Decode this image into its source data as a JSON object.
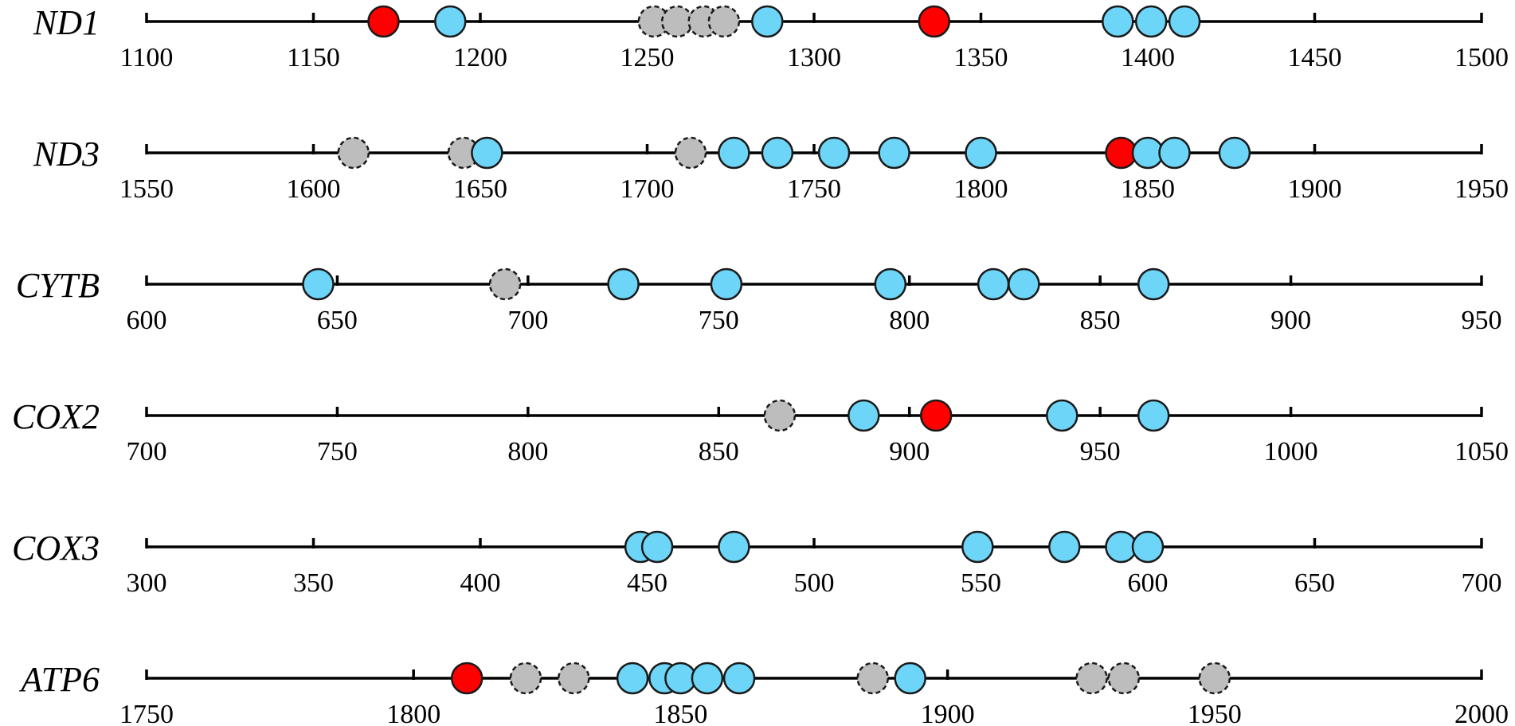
{
  "chart_data": {
    "type": "scatter",
    "title": "",
    "colors": {
      "red": "#ff0000",
      "blue": "#6dd5f7",
      "gray": "#bdbdbd",
      "outline": "#1a1a1a"
    },
    "tracks": [
      {
        "gene": "ND1",
        "xlim": [
          1100,
          1500
        ],
        "ticks": [
          1100,
          1150,
          1200,
          1250,
          1300,
          1350,
          1400,
          1450,
          1500
        ],
        "points": [
          {
            "x": 1171,
            "type": "red"
          },
          {
            "x": 1191,
            "type": "blue"
          },
          {
            "x": 1252,
            "type": "gray"
          },
          {
            "x": 1259,
            "type": "gray"
          },
          {
            "x": 1267,
            "type": "gray"
          },
          {
            "x": 1273,
            "type": "gray"
          },
          {
            "x": 1286,
            "type": "blue"
          },
          {
            "x": 1336,
            "type": "red"
          },
          {
            "x": 1391,
            "type": "blue"
          },
          {
            "x": 1401,
            "type": "blue"
          },
          {
            "x": 1411,
            "type": "blue"
          }
        ]
      },
      {
        "gene": "ND3",
        "xlim": [
          1550,
          1950
        ],
        "ticks": [
          1550,
          1600,
          1650,
          1700,
          1750,
          1800,
          1850,
          1900,
          1950
        ],
        "points": [
          {
            "x": 1612,
            "type": "gray"
          },
          {
            "x": 1645,
            "type": "gray"
          },
          {
            "x": 1652,
            "type": "blue"
          },
          {
            "x": 1713,
            "type": "gray"
          },
          {
            "x": 1726,
            "type": "blue"
          },
          {
            "x": 1739,
            "type": "blue"
          },
          {
            "x": 1756,
            "type": "blue"
          },
          {
            "x": 1774,
            "type": "blue"
          },
          {
            "x": 1800,
            "type": "blue"
          },
          {
            "x": 1842,
            "type": "red"
          },
          {
            "x": 1850,
            "type": "blue"
          },
          {
            "x": 1858,
            "type": "blue"
          },
          {
            "x": 1876,
            "type": "blue"
          }
        ]
      },
      {
        "gene": "CYTB",
        "xlim": [
          600,
          950
        ],
        "ticks": [
          600,
          650,
          700,
          750,
          800,
          850,
          900,
          950
        ],
        "points": [
          {
            "x": 645,
            "type": "blue"
          },
          {
            "x": 694,
            "type": "gray"
          },
          {
            "x": 725,
            "type": "blue"
          },
          {
            "x": 752,
            "type": "blue"
          },
          {
            "x": 795,
            "type": "blue"
          },
          {
            "x": 822,
            "type": "blue"
          },
          {
            "x": 830,
            "type": "blue"
          },
          {
            "x": 864,
            "type": "blue"
          }
        ]
      },
      {
        "gene": "COX2",
        "xlim": [
          700,
          1050
        ],
        "ticks": [
          700,
          750,
          800,
          850,
          900,
          950,
          1000,
          1050
        ],
        "points": [
          {
            "x": 866,
            "type": "gray"
          },
          {
            "x": 888,
            "type": "blue"
          },
          {
            "x": 907,
            "type": "red"
          },
          {
            "x": 940,
            "type": "blue"
          },
          {
            "x": 964,
            "type": "blue"
          }
        ]
      },
      {
        "gene": "COX3",
        "xlim": [
          300,
          700
        ],
        "ticks": [
          300,
          350,
          400,
          450,
          500,
          550,
          600,
          650,
          700
        ],
        "points": [
          {
            "x": 448,
            "type": "blue"
          },
          {
            "x": 453,
            "type": "blue"
          },
          {
            "x": 476,
            "type": "blue"
          },
          {
            "x": 549,
            "type": "blue"
          },
          {
            "x": 575,
            "type": "blue"
          },
          {
            "x": 592,
            "type": "blue"
          },
          {
            "x": 600,
            "type": "blue"
          }
        ]
      },
      {
        "gene": "ATP6",
        "xlim": [
          1750,
          2000
        ],
        "ticks": [
          1750,
          1800,
          1850,
          1900,
          1950,
          2000
        ],
        "points": [
          {
            "x": 1810,
            "type": "red"
          },
          {
            "x": 1821,
            "type": "gray"
          },
          {
            "x": 1830,
            "type": "gray"
          },
          {
            "x": 1841,
            "type": "blue"
          },
          {
            "x": 1847,
            "type": "blue"
          },
          {
            "x": 1850,
            "type": "blue"
          },
          {
            "x": 1855,
            "type": "blue"
          },
          {
            "x": 1861,
            "type": "blue"
          },
          {
            "x": 1886,
            "type": "gray"
          },
          {
            "x": 1893,
            "type": "blue"
          },
          {
            "x": 1927,
            "type": "gray"
          },
          {
            "x": 1933,
            "type": "gray"
          },
          {
            "x": 1950,
            "type": "gray"
          }
        ]
      }
    ]
  }
}
